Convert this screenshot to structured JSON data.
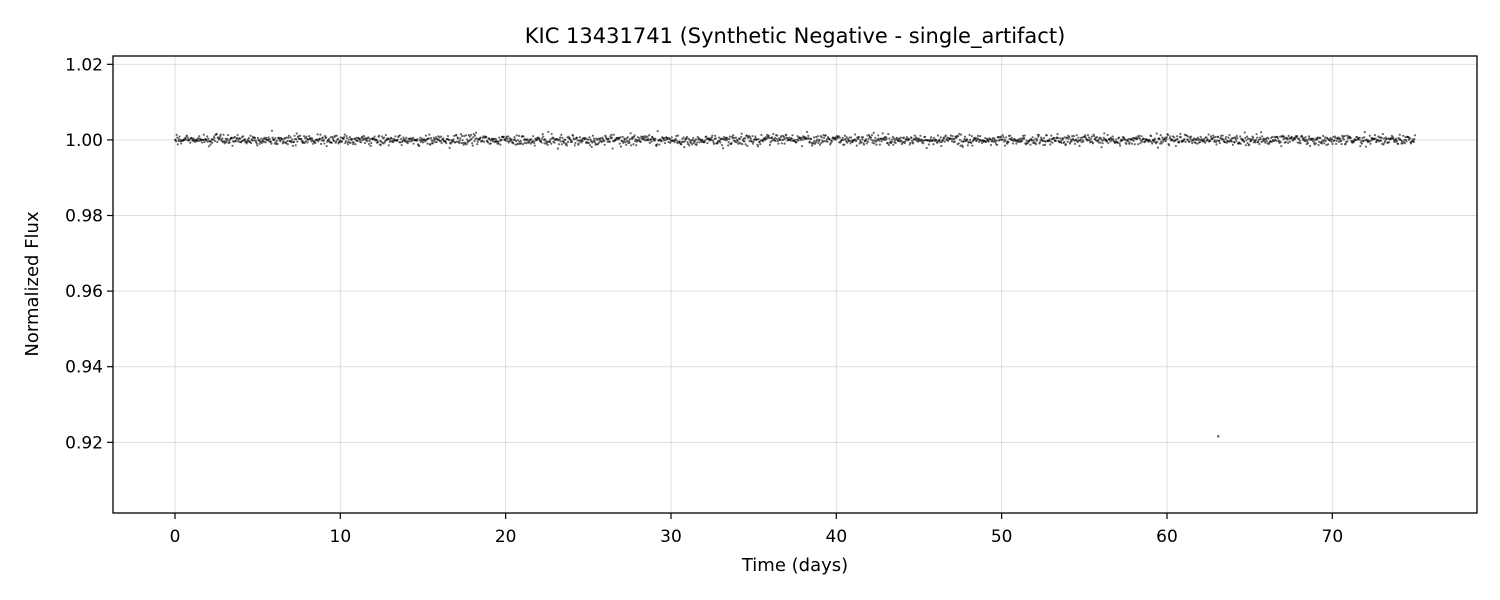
{
  "chart_data": {
    "type": "scatter",
    "title": "KIC 13431741 (Synthetic Negative - single_artifact)",
    "xlabel": "Time (days)",
    "ylabel": "Normalized Flux",
    "xlim": [
      -3.75,
      78.75
    ],
    "ylim": [
      0.9013,
      1.0222
    ],
    "x_ticks": [
      0,
      10,
      20,
      30,
      40,
      50,
      60,
      70
    ],
    "x_tick_labels": [
      "0",
      "10",
      "20",
      "30",
      "40",
      "50",
      "60",
      "70"
    ],
    "y_ticks": [
      0.92,
      0.94,
      0.96,
      0.98,
      1.0,
      1.02
    ],
    "y_tick_labels": [
      "0.92",
      "0.94",
      "0.96",
      "0.98",
      "1.00",
      "1.02"
    ],
    "grid": true,
    "marker_color": "#000000",
    "series": [
      {
        "sampling": {
          "x_start": 0.0,
          "x_end": 75.0,
          "n_points": 2200
        },
        "baseline_flux": 1.0,
        "scatter_std": 0.0007,
        "artifact": {
          "x": 63.1,
          "y": 0.9216
        }
      }
    ]
  }
}
